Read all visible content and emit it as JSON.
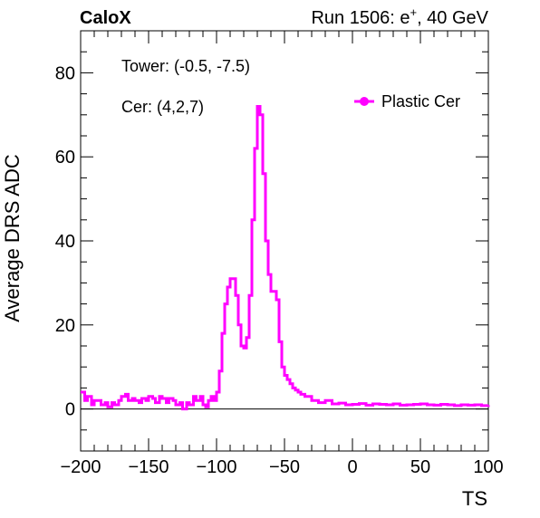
{
  "header": {
    "left": "CaloX",
    "right_prefix": "Run 1506: e",
    "right_sup": "+",
    "right_suffix": ", 40 GeV"
  },
  "annotations": {
    "tower": "Tower: (-0.5, -7.5)",
    "cer": "Cer: (4,2,7)"
  },
  "colors": {
    "series": "#ff00ff",
    "axis": "#000000",
    "zero_line": "#000000"
  },
  "chart_data": {
    "type": "line",
    "title": "",
    "xlabel": "TS",
    "ylabel": "Average DRS ADC",
    "xlim": [
      -200,
      100
    ],
    "ylim": [
      -10,
      90
    ],
    "grid": false,
    "legend_position": "top-right",
    "x_ticks": [
      -200,
      -150,
      -100,
      -50,
      0,
      50,
      100
    ],
    "x_tick_labels": [
      "−200",
      "−150",
      "−100",
      "−50",
      "0",
      "50",
      "100"
    ],
    "y_ticks": [
      0,
      20,
      40,
      60,
      80
    ],
    "y_tick_labels": [
      "0",
      "20",
      "40",
      "60",
      "80"
    ],
    "reference_line_y": 0,
    "series": [
      {
        "name": "Plastic Cer",
        "step": true,
        "x": [
          -200,
          -197,
          -195,
          -192,
          -190,
          -187,
          -185,
          -182,
          -180,
          -177,
          -175,
          -172,
          -170,
          -167,
          -165,
          -162,
          -160,
          -157,
          -155,
          -152,
          -150,
          -147,
          -145,
          -142,
          -140,
          -137,
          -135,
          -132,
          -130,
          -127,
          -125,
          -122,
          -120,
          -117,
          -115,
          -112,
          -110,
          -108,
          -106,
          -104,
          -102,
          -100,
          -98,
          -96,
          -94,
          -92,
          -90,
          -88,
          -86,
          -84,
          -82,
          -80,
          -78,
          -76,
          -74,
          -72,
          -70,
          -68,
          -66,
          -64,
          -62,
          -60,
          -58,
          -56,
          -54,
          -52,
          -50,
          -48,
          -46,
          -44,
          -42,
          -40,
          -38,
          -35,
          -30,
          -25,
          -20,
          -15,
          -10,
          -5,
          0,
          5,
          10,
          15,
          20,
          25,
          30,
          35,
          40,
          45,
          50,
          55,
          60,
          65,
          70,
          75,
          80,
          85,
          90,
          95,
          100
        ],
        "y": [
          4,
          2,
          3,
          1,
          2,
          2,
          1,
          1.5,
          0.5,
          1.5,
          1,
          2,
          3,
          3.5,
          2,
          2.5,
          2,
          1.5,
          2.5,
          2,
          3,
          2.5,
          1.5,
          3,
          2.5,
          1.5,
          2.5,
          2,
          1,
          1.5,
          0,
          1.5,
          1,
          3,
          2,
          3,
          1,
          0.5,
          2,
          3,
          2,
          4,
          9,
          18,
          25,
          29,
          31,
          31,
          27,
          20,
          15,
          14.5,
          17,
          27,
          45,
          62,
          72,
          70,
          56,
          40,
          32,
          28,
          28,
          26,
          16,
          10,
          8,
          7,
          6,
          5,
          4.5,
          4,
          3.5,
          3,
          2,
          1.5,
          2,
          1.2,
          1.4,
          1,
          1.1,
          1.3,
          0.9,
          1.2,
          1.1,
          1,
          1.2,
          0.9,
          1,
          1.1,
          1.2,
          1,
          0.9,
          1.1,
          1,
          0.8,
          1,
          0.9,
          1,
          0.8,
          0.9
        ]
      }
    ]
  }
}
